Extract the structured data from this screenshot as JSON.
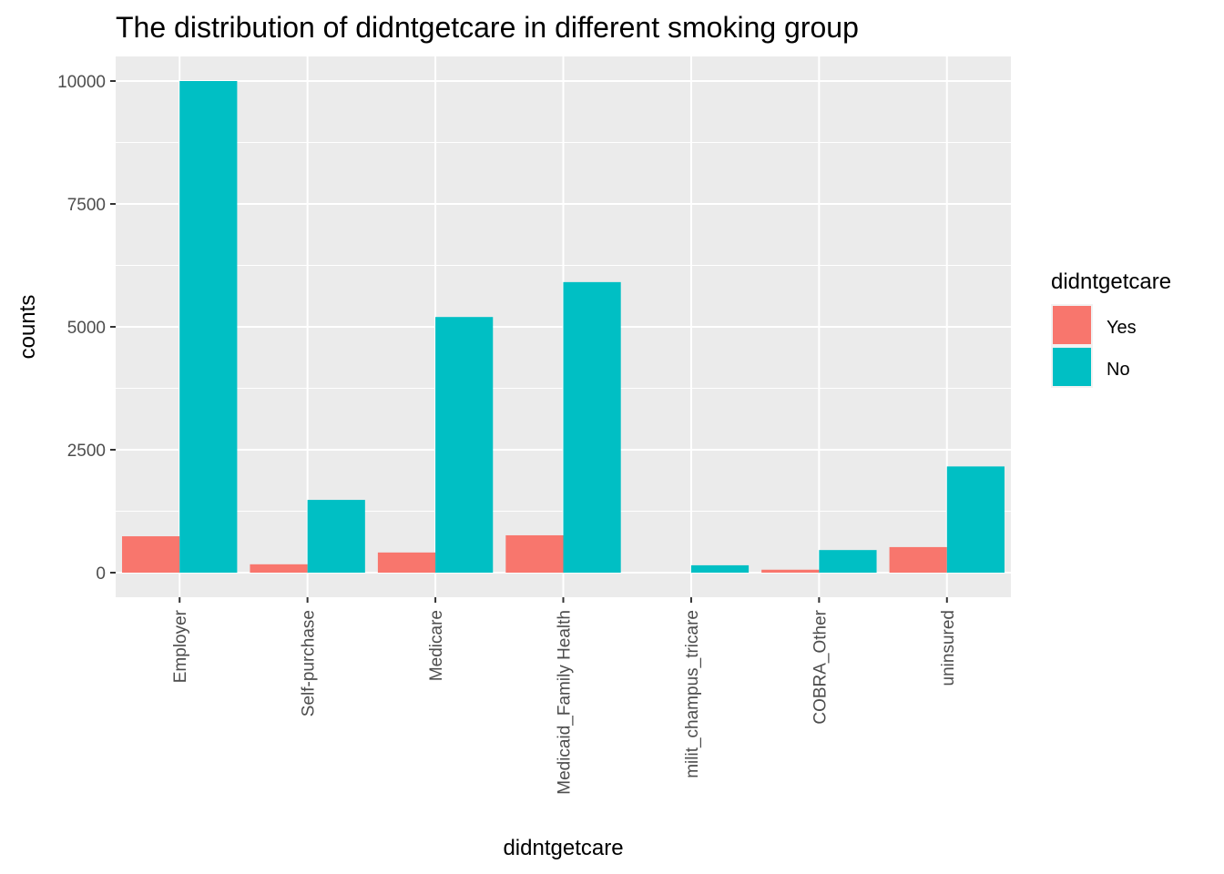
{
  "chart_data": {
    "type": "bar",
    "title": "The distribution of didntgetcare in different smoking group",
    "xlabel": "didntgetcare",
    "ylabel": "counts",
    "categories": [
      "Employer",
      "Self-purchase",
      "Medicare",
      "Medicaid_Family Health",
      "milit_champus_tricare",
      "COBRA_Other",
      "uninsured"
    ],
    "series": [
      {
        "name": "Yes",
        "color": "#F8766D",
        "values": [
          740,
          170,
          410,
          760,
          0,
          60,
          520
        ]
      },
      {
        "name": "No",
        "color": "#00BFC4",
        "values": [
          10000,
          1480,
          5200,
          5910,
          150,
          460,
          2160
        ]
      }
    ],
    "yticks": [
      "0",
      "2500",
      "5000",
      "7500",
      "10000"
    ],
    "ylim": [
      -500,
      10500
    ],
    "grid": true,
    "legend": {
      "title": "didntgetcare",
      "position": "right"
    },
    "panel_background": "#EBEBEB"
  }
}
